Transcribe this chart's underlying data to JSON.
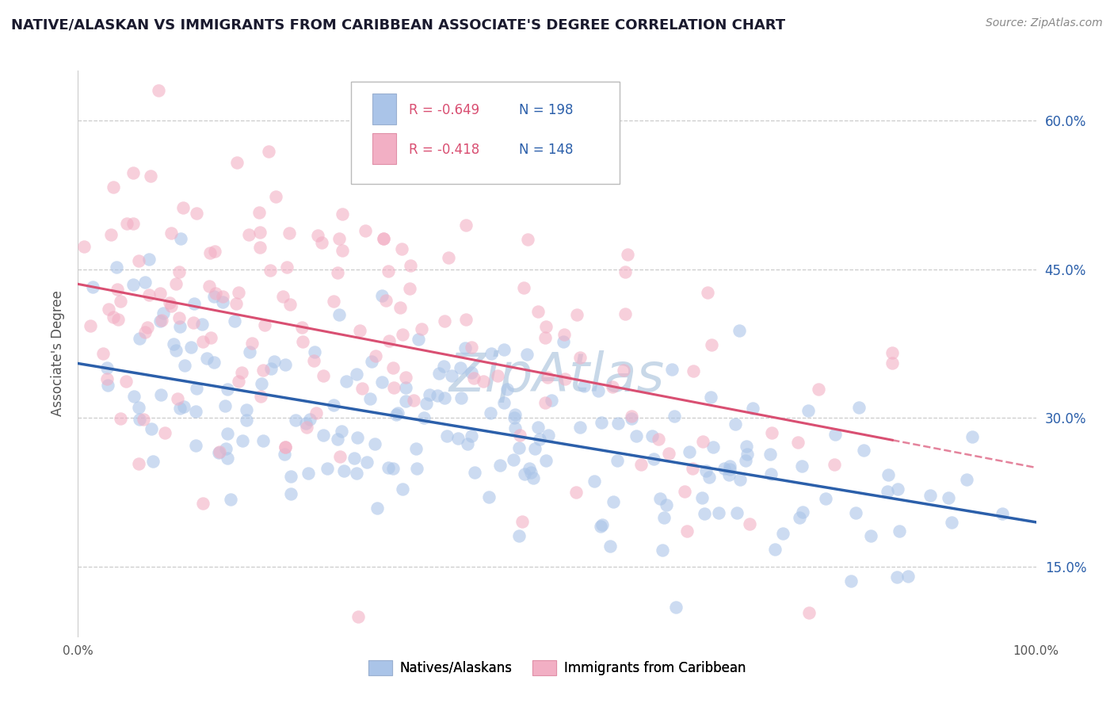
{
  "title": "NATIVE/ALASKAN VS IMMIGRANTS FROM CARIBBEAN ASSOCIATE'S DEGREE CORRELATION CHART",
  "source": "Source: ZipAtlas.com",
  "ylabel": "Associate's Degree",
  "xlim": [
    0.0,
    1.0
  ],
  "ylim": [
    0.08,
    0.65
  ],
  "y_tick_labels_right": [
    "15.0%",
    "30.0%",
    "45.0%",
    "60.0%"
  ],
  "y_tick_vals_right": [
    0.15,
    0.3,
    0.45,
    0.6
  ],
  "blue_R": "-0.649",
  "blue_N": "198",
  "pink_R": "-0.418",
  "pink_N": "148",
  "blue_color": "#aac4e8",
  "pink_color": "#f2afc4",
  "blue_line_color": "#2b5faa",
  "pink_line_color": "#d94f72",
  "legend_blue_label": "Natives/Alaskans",
  "legend_pink_label": "Immigrants from Caribbean",
  "background_color": "#ffffff",
  "grid_color": "#cccccc",
  "blue_R_color": "#2b5faa",
  "pink_R_color": "#d94f72",
  "watermark_color": "#c8d8e8"
}
